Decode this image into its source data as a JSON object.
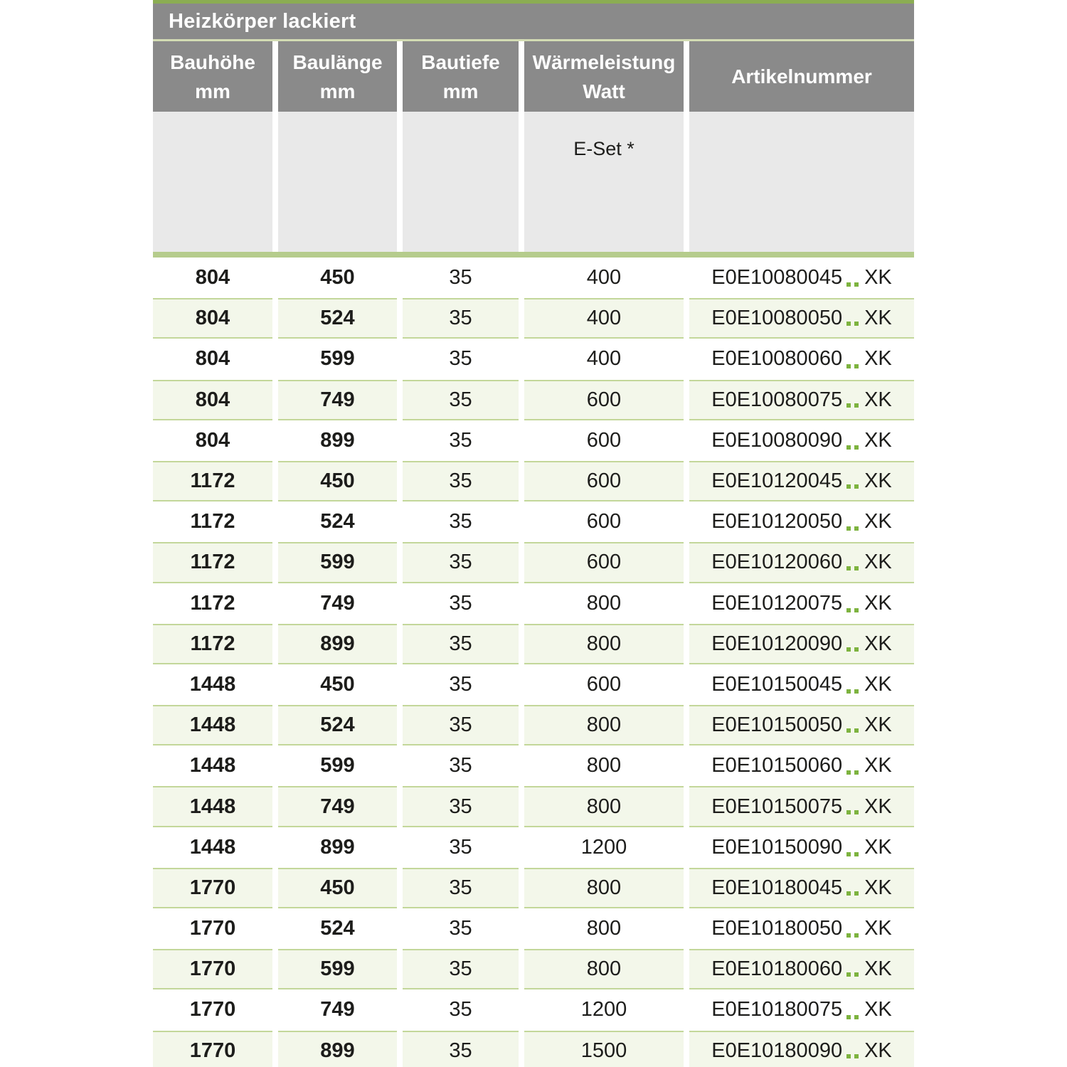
{
  "table": {
    "title": "Heizkörper lackiert",
    "columns": [
      {
        "label": "Bauhöhe",
        "unit": "mm"
      },
      {
        "label": "Baulänge",
        "unit": "mm"
      },
      {
        "label": "Bautiefe",
        "unit": "mm"
      },
      {
        "label": "Wärmeleistung",
        "unit": "Watt"
      },
      {
        "label": "Artikelnummer",
        "unit": ""
      }
    ],
    "subheader": {
      "e_set_label": "E-Set *"
    },
    "rows": [
      {
        "h": "804",
        "l": "450",
        "t": "35",
        "w": "400",
        "art": "E0E10080045",
        "art_suffix": "XK"
      },
      {
        "h": "804",
        "l": "524",
        "t": "35",
        "w": "400",
        "art": "E0E10080050",
        "art_suffix": "XK"
      },
      {
        "h": "804",
        "l": "599",
        "t": "35",
        "w": "400",
        "art": "E0E10080060",
        "art_suffix": "XK"
      },
      {
        "h": "804",
        "l": "749",
        "t": "35",
        "w": "600",
        "art": "E0E10080075",
        "art_suffix": "XK"
      },
      {
        "h": "804",
        "l": "899",
        "t": "35",
        "w": "600",
        "art": "E0E10080090",
        "art_suffix": "XK"
      },
      {
        "h": "1172",
        "l": "450",
        "t": "35",
        "w": "600",
        "art": "E0E10120045",
        "art_suffix": "XK"
      },
      {
        "h": "1172",
        "l": "524",
        "t": "35",
        "w": "600",
        "art": "E0E10120050",
        "art_suffix": "XK"
      },
      {
        "h": "1172",
        "l": "599",
        "t": "35",
        "w": "600",
        "art": "E0E10120060",
        "art_suffix": "XK"
      },
      {
        "h": "1172",
        "l": "749",
        "t": "35",
        "w": "800",
        "art": "E0E10120075",
        "art_suffix": "XK"
      },
      {
        "h": "1172",
        "l": "899",
        "t": "35",
        "w": "800",
        "art": "E0E10120090",
        "art_suffix": "XK"
      },
      {
        "h": "1448",
        "l": "450",
        "t": "35",
        "w": "600",
        "art": "E0E10150045",
        "art_suffix": "XK"
      },
      {
        "h": "1448",
        "l": "524",
        "t": "35",
        "w": "800",
        "art": "E0E10150050",
        "art_suffix": "XK"
      },
      {
        "h": "1448",
        "l": "599",
        "t": "35",
        "w": "800",
        "art": "E0E10150060",
        "art_suffix": "XK"
      },
      {
        "h": "1448",
        "l": "749",
        "t": "35",
        "w": "800",
        "art": "E0E10150075",
        "art_suffix": "XK"
      },
      {
        "h": "1448",
        "l": "899",
        "t": "35",
        "w": "1200",
        "art": "E0E10150090",
        "art_suffix": "XK"
      },
      {
        "h": "1770",
        "l": "450",
        "t": "35",
        "w": "800",
        "art": "E0E10180045",
        "art_suffix": "XK"
      },
      {
        "h": "1770",
        "l": "524",
        "t": "35",
        "w": "800",
        "art": "E0E10180050",
        "art_suffix": "XK"
      },
      {
        "h": "1770",
        "l": "599",
        "t": "35",
        "w": "800",
        "art": "E0E10180060",
        "art_suffix": "XK"
      },
      {
        "h": "1770",
        "l": "749",
        "t": "35",
        "w": "1200",
        "art": "E0E10180075",
        "art_suffix": "XK"
      },
      {
        "h": "1770",
        "l": "899",
        "t": "35",
        "w": "1500",
        "art": "E0E10180090",
        "art_suffix": "XK"
      }
    ],
    "colors": {
      "header_gray": "#8a8a8a",
      "accent_green": "#8bad53",
      "title_separator_green": "#d3dcb4",
      "band_green": "#b5cc8c",
      "row_green": "#f3f7ea",
      "row_border_green": "#c3d79a",
      "dot_green": "#7db33f",
      "subheader_gray": "#e9e9e9"
    }
  }
}
